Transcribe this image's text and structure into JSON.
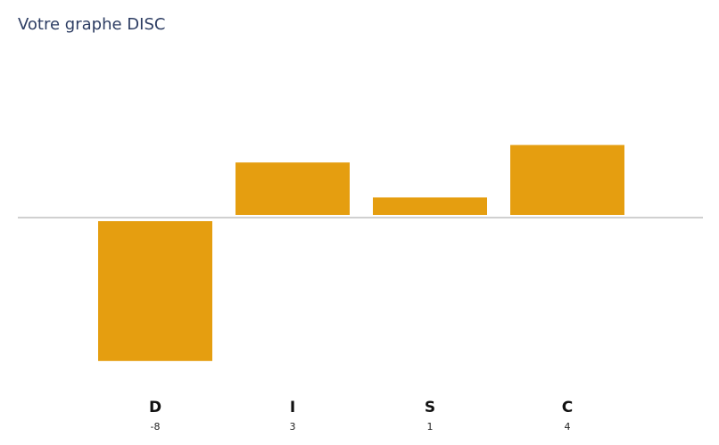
{
  "chart_data": {
    "type": "bar",
    "title": "Votre graphe DISC",
    "categories": [
      "D",
      "I",
      "S",
      "C"
    ],
    "values": [
      -8,
      3,
      1,
      4
    ],
    "color": "#e59e10"
  }
}
